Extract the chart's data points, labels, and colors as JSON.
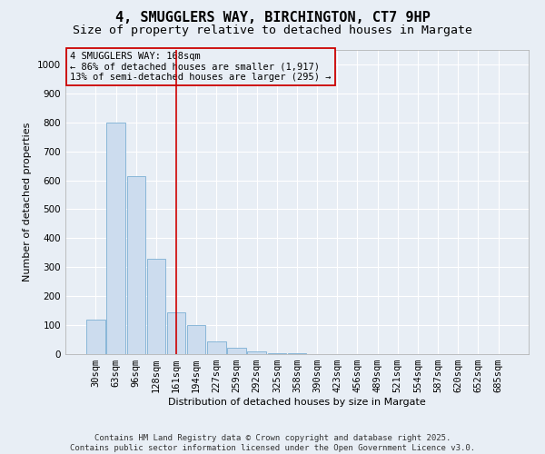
{
  "title": "4, SMUGGLERS WAY, BIRCHINGTON, CT7 9HP",
  "subtitle": "Size of property relative to detached houses in Margate",
  "xlabel": "Distribution of detached houses by size in Margate",
  "ylabel": "Number of detached properties",
  "categories": [
    "30sqm",
    "63sqm",
    "96sqm",
    "128sqm",
    "161sqm",
    "194sqm",
    "227sqm",
    "259sqm",
    "292sqm",
    "325sqm",
    "358sqm",
    "390sqm",
    "423sqm",
    "456sqm",
    "489sqm",
    "521sqm",
    "554sqm",
    "587sqm",
    "620sqm",
    "652sqm",
    "685sqm"
  ],
  "values": [
    120,
    800,
    615,
    330,
    145,
    100,
    45,
    22,
    8,
    4,
    2,
    1,
    1,
    0,
    0,
    0,
    0,
    0,
    0,
    0,
    0
  ],
  "bar_color": "#ccdcee",
  "bar_edge_color": "#7bafd4",
  "vline_x_index": 4,
  "vline_color": "#cc0000",
  "annotation_box_text": "4 SMUGGLERS WAY: 168sqm\n← 86% of detached houses are smaller (1,917)\n13% of semi-detached houses are larger (295) →",
  "annotation_box_color": "#cc0000",
  "ylim": [
    0,
    1050
  ],
  "yticks": [
    0,
    100,
    200,
    300,
    400,
    500,
    600,
    700,
    800,
    900,
    1000
  ],
  "footer_line1": "Contains HM Land Registry data © Crown copyright and database right 2025.",
  "footer_line2": "Contains public sector information licensed under the Open Government Licence v3.0.",
  "background_color": "#e8eef5",
  "grid_color": "#ffffff",
  "title_fontsize": 11,
  "subtitle_fontsize": 9.5,
  "axis_label_fontsize": 8,
  "tick_fontsize": 7.5,
  "annotation_fontsize": 7.5,
  "footer_fontsize": 6.5
}
